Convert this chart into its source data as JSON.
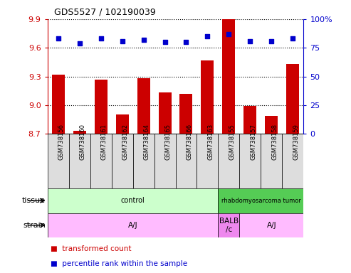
{
  "title": "GDS5527 / 102190039",
  "samples": [
    "GSM738156",
    "GSM738160",
    "GSM738161",
    "GSM738162",
    "GSM738164",
    "GSM738165",
    "GSM738166",
    "GSM738163",
    "GSM738155",
    "GSM738157",
    "GSM738158",
    "GSM738159"
  ],
  "bar_values": [
    9.32,
    8.73,
    9.27,
    8.9,
    9.28,
    9.13,
    9.12,
    9.47,
    9.9,
    8.99,
    8.89,
    9.43
  ],
  "dot_values": [
    83,
    79,
    83,
    81,
    82,
    80,
    80,
    85,
    87,
    81,
    81,
    83
  ],
  "ylim_left": [
    8.7,
    9.9
  ],
  "ylim_right": [
    0,
    100
  ],
  "yticks_left": [
    8.7,
    9.0,
    9.3,
    9.6,
    9.9
  ],
  "yticks_right": [
    0,
    25,
    50,
    75,
    100
  ],
  "bar_color": "#cc0000",
  "dot_color": "#0000cc",
  "bar_base": 8.7,
  "tissue_segments": [
    {
      "text": "control",
      "start": 0,
      "end": 8,
      "color": "#ccffcc"
    },
    {
      "text": "rhabdomyosarcoma tumor",
      "start": 8,
      "end": 12,
      "color": "#55cc55"
    }
  ],
  "strain_segments": [
    {
      "text": "A/J",
      "start": 0,
      "end": 8,
      "color": "#ffbbff"
    },
    {
      "text": "BALB\n/c",
      "start": 8,
      "end": 9,
      "color": "#ee88ee"
    },
    {
      "text": "A/J",
      "start": 9,
      "end": 12,
      "color": "#ffbbff"
    }
  ],
  "legend_items": [
    {
      "color": "#cc0000",
      "label": "transformed count"
    },
    {
      "color": "#0000cc",
      "label": "percentile rank within the sample"
    }
  ],
  "left_axis_color": "#cc0000",
  "right_axis_color": "#0000cc",
  "label_box_color": "#dddddd",
  "grid_color": "black",
  "grid_linestyle": ":",
  "grid_linewidth": 0.8
}
